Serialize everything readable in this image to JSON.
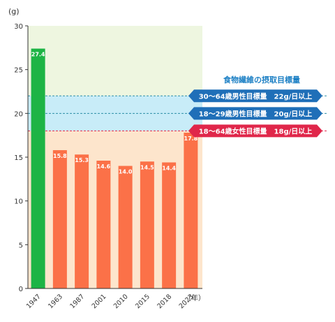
{
  "chart_data": {
    "type": "bar",
    "unit_label": "(g)",
    "x_unit_label": "（年）",
    "categories": [
      "1947",
      "1963",
      "1987",
      "2001",
      "2010",
      "2015",
      "2018",
      "2023"
    ],
    "values": [
      27.4,
      15.8,
      15.3,
      14.6,
      14.0,
      14.5,
      14.4,
      17.8
    ],
    "value_labels": [
      "27.4",
      "15.8",
      "15.3",
      "14.6",
      "14.0",
      "14.5",
      "14.4",
      "17.8"
    ],
    "bar_colors": [
      "#1db445",
      "#fb7148",
      "#fb7148",
      "#fb7148",
      "#fb7148",
      "#fb7148",
      "#fb7148",
      "#fb7148"
    ],
    "ylim": [
      0,
      30
    ],
    "yticks": [
      0,
      5,
      10,
      15,
      20,
      25,
      30
    ],
    "grid": false,
    "legend_title": "食物繊維の摂取目標量",
    "references": [
      {
        "label": "30〜64歳男性目標量　22g/日以上",
        "value": 22,
        "color": "#1f6fb8",
        "line_color": "#2e8fa8"
      },
      {
        "label": "18〜29歳男性目標量　20g/日以上",
        "value": 20,
        "color": "#1f6fb8",
        "line_color": "#2e8fa8"
      },
      {
        "label": "18〜64歳女性目標量　18g/日以上",
        "value": 18,
        "color": "#e0264a",
        "line_color": "#e0264a"
      }
    ],
    "bands": [
      {
        "from": 0,
        "to": 18,
        "color": "#fde5cc"
      },
      {
        "from": 18,
        "to": 22,
        "color": "#c8ecf8"
      },
      {
        "from": 22,
        "to": 30,
        "color": "#eef6e0"
      }
    ]
  }
}
